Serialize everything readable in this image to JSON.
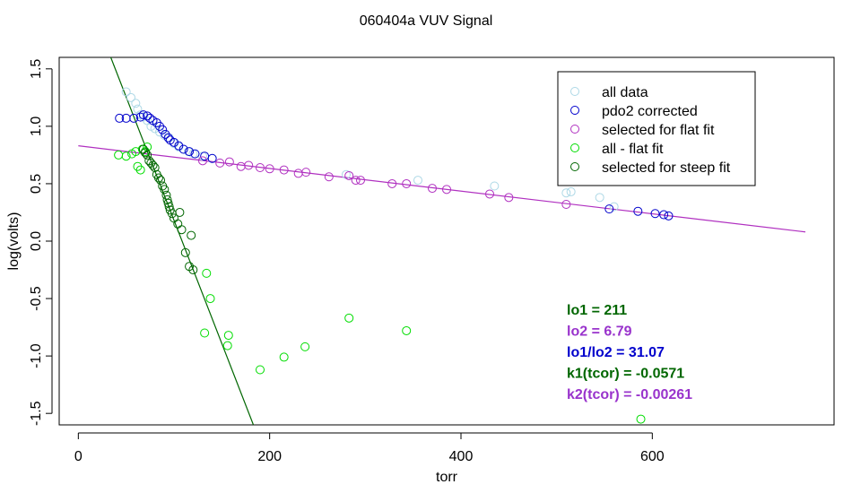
{
  "chart_data": {
    "type": "scatter",
    "title": "060404a   VUV Signal",
    "xlabel": "torr",
    "ylabel": "log(volts)",
    "xlim": [
      -20,
      790
    ],
    "ylim": [
      -1.6,
      1.6
    ],
    "x_ticks": [
      0,
      200,
      400,
      600
    ],
    "x_tick_labels": [
      "0",
      "200",
      "400",
      "600"
    ],
    "y_ticks": [
      -1.5,
      -1.0,
      -0.5,
      0.0,
      0.5,
      1.0,
      1.5
    ],
    "y_tick_labels": [
      "-1.5",
      "-1.0",
      "-0.5",
      "0.0",
      "0.5",
      "1.0",
      "1.5"
    ],
    "grid": false,
    "legend_position": "top-right",
    "series": [
      {
        "name": "all data",
        "color": "#add8e6",
        "marker": "circle",
        "points": [
          [
            50,
            1.3
          ],
          [
            55,
            1.25
          ],
          [
            60,
            1.2
          ],
          [
            62,
            1.15
          ],
          [
            65,
            1.1
          ],
          [
            68,
            1.08
          ],
          [
            72,
            1.05
          ],
          [
            76,
            1.0
          ],
          [
            80,
            0.98
          ],
          [
            85,
            0.95
          ],
          [
            90,
            0.92
          ],
          [
            95,
            0.9
          ],
          [
            100,
            0.85
          ],
          [
            105,
            0.82
          ],
          [
            110,
            0.8
          ],
          [
            115,
            0.78
          ],
          [
            120,
            0.76
          ],
          [
            130,
            0.74
          ],
          [
            140,
            0.72
          ],
          [
            280,
            0.58
          ],
          [
            355,
            0.53
          ],
          [
            435,
            0.48
          ],
          [
            510,
            0.42
          ],
          [
            515,
            0.43
          ],
          [
            545,
            0.38
          ],
          [
            560,
            0.3
          ]
        ]
      },
      {
        "name": "pdo2 corrected",
        "color": "#0000cc",
        "marker": "circle",
        "points": [
          [
            43,
            1.07
          ],
          [
            50,
            1.07
          ],
          [
            58,
            1.07
          ],
          [
            65,
            1.08
          ],
          [
            68,
            1.1
          ],
          [
            72,
            1.09
          ],
          [
            75,
            1.07
          ],
          [
            78,
            1.05
          ],
          [
            82,
            1.03
          ],
          [
            85,
            1.0
          ],
          [
            88,
            0.97
          ],
          [
            91,
            0.93
          ],
          [
            94,
            0.9
          ],
          [
            96,
            0.88
          ],
          [
            100,
            0.86
          ],
          [
            105,
            0.83
          ],
          [
            110,
            0.8
          ],
          [
            116,
            0.78
          ],
          [
            122,
            0.76
          ],
          [
            132,
            0.74
          ],
          [
            140,
            0.72
          ],
          [
            555,
            0.28
          ],
          [
            585,
            0.26
          ],
          [
            603,
            0.24
          ],
          [
            612,
            0.23
          ],
          [
            617,
            0.22
          ]
        ]
      },
      {
        "name": "selected for flat fit",
        "color": "#b030c0",
        "marker": "circle",
        "points": [
          [
            130,
            0.7
          ],
          [
            148,
            0.68
          ],
          [
            158,
            0.69
          ],
          [
            170,
            0.65
          ],
          [
            178,
            0.66
          ],
          [
            190,
            0.64
          ],
          [
            200,
            0.63
          ],
          [
            215,
            0.62
          ],
          [
            230,
            0.59
          ],
          [
            238,
            0.6
          ],
          [
            262,
            0.56
          ],
          [
            283,
            0.57
          ],
          [
            290,
            0.53
          ],
          [
            295,
            0.53
          ],
          [
            328,
            0.5
          ],
          [
            343,
            0.5
          ],
          [
            370,
            0.46
          ],
          [
            385,
            0.45
          ],
          [
            430,
            0.41
          ],
          [
            450,
            0.38
          ],
          [
            510,
            0.32
          ]
        ]
      },
      {
        "name": "all - flat fit",
        "color": "#00dd00",
        "marker": "circle",
        "points": [
          [
            42,
            0.75
          ],
          [
            50,
            0.74
          ],
          [
            56,
            0.76
          ],
          [
            60,
            0.78
          ],
          [
            62,
            0.65
          ],
          [
            65,
            0.62
          ],
          [
            67,
            0.8
          ],
          [
            70,
            0.78
          ],
          [
            72,
            0.82
          ],
          [
            134,
            -0.28
          ],
          [
            138,
            -0.5
          ],
          [
            132,
            -0.8
          ],
          [
            157,
            -0.82
          ],
          [
            156,
            -0.91
          ],
          [
            190,
            -1.12
          ],
          [
            215,
            -1.01
          ],
          [
            237,
            -0.92
          ],
          [
            283,
            -0.67
          ],
          [
            343,
            -0.78
          ],
          [
            588,
            -1.55
          ]
        ]
      },
      {
        "name": "selected for steep fit",
        "color": "#006600",
        "marker": "circle",
        "points": [
          [
            68,
            0.8
          ],
          [
            70,
            0.77
          ],
          [
            72,
            0.75
          ],
          [
            74,
            0.7
          ],
          [
            76,
            0.68
          ],
          [
            78,
            0.66
          ],
          [
            80,
            0.64
          ],
          [
            82,
            0.58
          ],
          [
            84,
            0.55
          ],
          [
            86,
            0.53
          ],
          [
            88,
            0.48
          ],
          [
            90,
            0.45
          ],
          [
            92,
            0.4
          ],
          [
            93,
            0.36
          ],
          [
            94,
            0.33
          ],
          [
            95,
            0.3
          ],
          [
            96,
            0.27
          ],
          [
            98,
            0.24
          ],
          [
            100,
            0.2
          ],
          [
            104,
            0.15
          ],
          [
            108,
            0.1
          ],
          [
            112,
            -0.1
          ],
          [
            116,
            -0.22
          ],
          [
            120,
            -0.25
          ],
          [
            118,
            0.05
          ],
          [
            106,
            0.25
          ]
        ]
      }
    ],
    "fit_lines": [
      {
        "name": "flat fit",
        "color": "#b030c0",
        "points": [
          [
            0,
            0.83
          ],
          [
            760,
            0.08
          ]
        ]
      },
      {
        "name": "steep fit",
        "color": "#006600",
        "points": [
          [
            33,
            1.62
          ],
          [
            183,
            -1.6
          ]
        ]
      }
    ],
    "annotations": [
      {
        "text": "lo1 =  211",
        "color": "#006600"
      },
      {
        "text": "lo2 =  6.79",
        "color": "#9933cc"
      },
      {
        "text": "lo1/lo2 =  31.07",
        "color": "#0000cc"
      },
      {
        "text": "k1(tcor) =  -0.0571",
        "color": "#006600"
      },
      {
        "text": "k2(tcor) =  -0.00261",
        "color": "#9933cc"
      }
    ]
  }
}
